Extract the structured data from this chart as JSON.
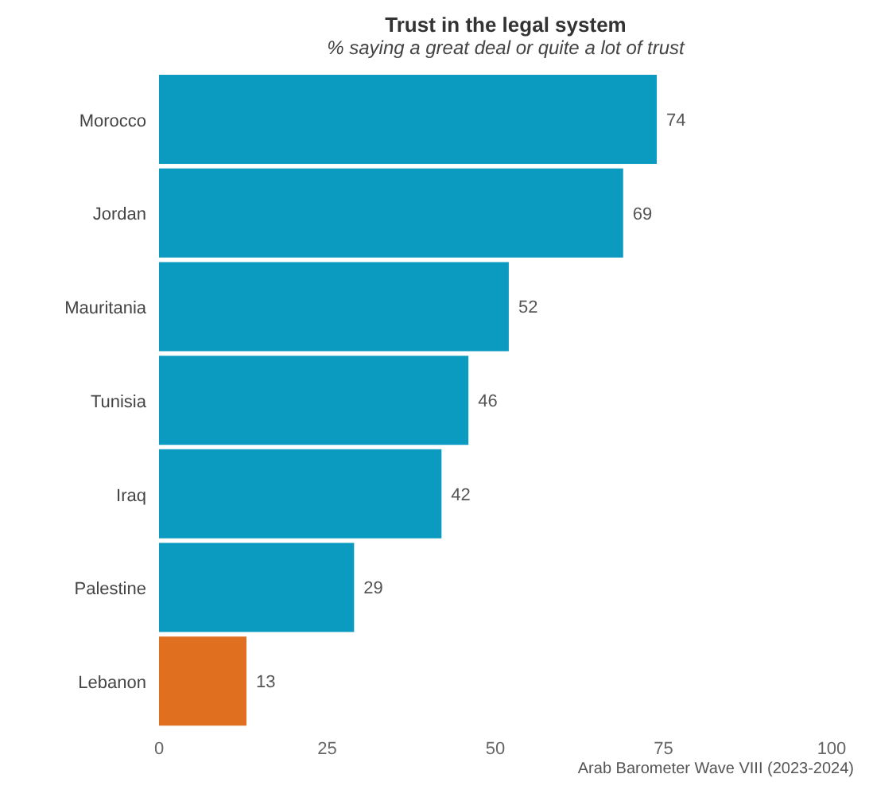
{
  "chart_data": {
    "type": "bar",
    "orientation": "horizontal",
    "title": "Trust in the legal system",
    "subtitle": "% saying a great deal or quite a lot of trust",
    "categories": [
      "Morocco",
      "Jordan",
      "Mauritania",
      "Tunisia",
      "Iraq",
      "Palestine",
      "Lebanon"
    ],
    "values": [
      74,
      69,
      52,
      46,
      42,
      29,
      13
    ],
    "colors": [
      "#0b9bc1",
      "#0b9bc1",
      "#0b9bc1",
      "#0b9bc1",
      "#0b9bc1",
      "#0b9bc1",
      "#e06f1f"
    ],
    "xlim": [
      0,
      100
    ],
    "xticks": [
      0,
      25,
      50,
      75,
      100
    ],
    "data_labels": true,
    "grid": false,
    "legend": false,
    "annotations": [
      "Arab Barometer Wave VIII (2023-2024)"
    ]
  }
}
